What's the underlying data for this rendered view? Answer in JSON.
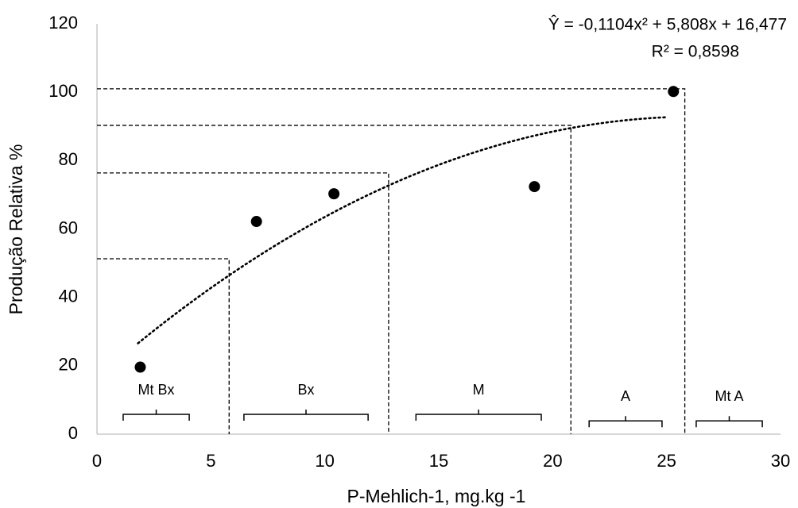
{
  "chart_data": {
    "type": "scatter",
    "x_label": "P-Mehlich-1, mg.kg -1",
    "y_label": "Produção Relativa %",
    "x": [
      1.9,
      7.0,
      10.4,
      19.2,
      25.3
    ],
    "values": [
      19.6,
      62.2,
      70.3,
      72.4,
      100.2
    ],
    "color": "#000000",
    "xlim": [
      0,
      30
    ],
    "xticks": [
      0,
      5,
      10,
      15,
      20,
      25,
      30
    ],
    "ylim": [
      0,
      120
    ],
    "yticks": [
      0,
      20,
      40,
      60,
      80,
      100,
      120
    ],
    "trendline": {
      "label": "Ŷ = -0,1104x² + 5,808x + 16,477",
      "r2_label": "R² = 0,8598",
      "coefficients": [
        -0.1104,
        5.808,
        16.477
      ],
      "xlim": [
        1.8,
        25
      ]
    },
    "reference_lines": [
      {
        "x": 5.8,
        "y": 51.3
      },
      {
        "x": 12.8,
        "y": 76.4
      },
      {
        "x": 20.8,
        "y": 90.3
      },
      {
        "x": 25.8,
        "y": 101
      }
    ],
    "classes": [
      {
        "label": "Mt Bx",
        "x": [
          1.15,
          4.05
        ],
        "y": 5.8
      },
      {
        "label": "Bx",
        "x": [
          6.45,
          11.9
        ],
        "y": 5.8
      },
      {
        "label": "M",
        "x": [
          14.0,
          19.5
        ],
        "y": 5.8
      },
      {
        "label": "A",
        "x": [
          21.6,
          24.8
        ],
        "y": 3.9
      },
      {
        "label": "Mt A",
        "x": [
          26.3,
          29.2
        ],
        "y": 3.9
      }
    ]
  }
}
